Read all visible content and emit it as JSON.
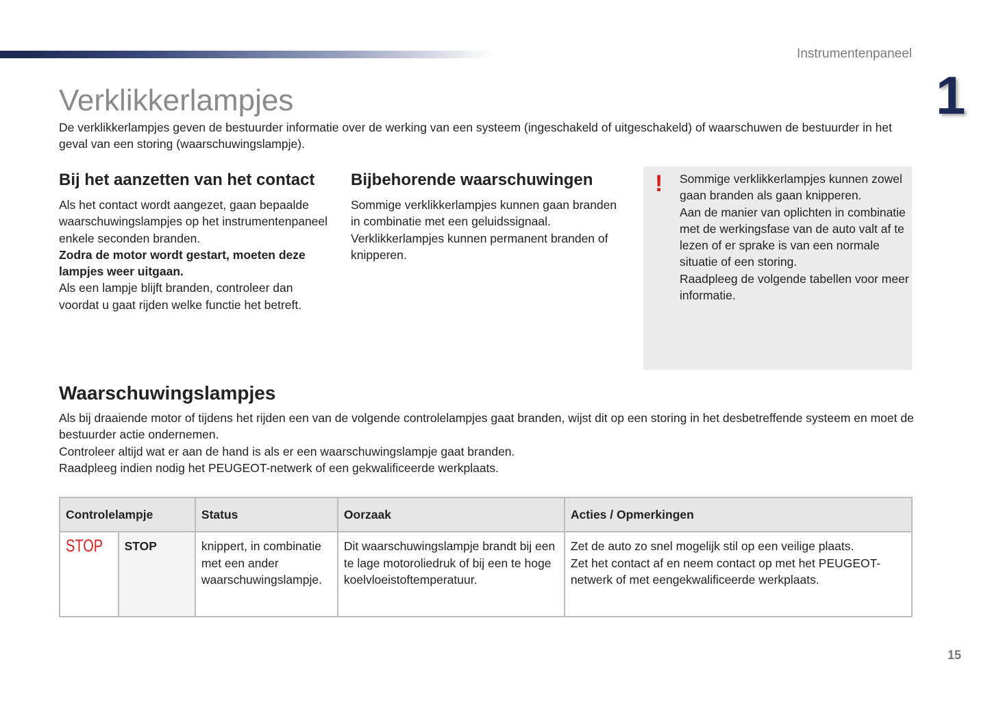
{
  "header": {
    "section": "Instrumentenpaneel",
    "chapter": "1"
  },
  "title": "Verklikkerlampjes",
  "intro": "De verklikkerlampjes geven de bestuurder informatie over de werking van een systeem (ingeschakeld of uitgeschakeld) of waarschuwen de bestuurder in het geval van een storing (waarschuwingslampje).",
  "col1": {
    "heading": "Bij het aanzetten van het contact",
    "text1": "Als het contact wordt aangezet, gaan bepaalde waarschuwingslampjes op het instrumentenpaneel enkele seconden branden.",
    "bold": "Zodra de motor wordt gestart, moeten deze lampjes weer uitgaan.",
    "text2": "Als een lampje blijft branden, controleer dan voordat u gaat rijden welke functie het betreft."
  },
  "col2": {
    "heading": "Bijbehorende waarschuwingen",
    "text": "Sommige verklikkerlampjes kunnen gaan branden in combinatie met een geluidssignaal. Verklikkerlampjes kunnen permanent branden of knipperen."
  },
  "note": {
    "icon": "exclamation-icon",
    "line1": "Sommige verklikkerlampjes kunnen zowel gaan branden als gaan knipperen.",
    "line2": "Aan de manier van oplichten in combinatie met de werkingsfase van de auto valt af te lezen of er sprake is van een normale situatie of een storing.",
    "line3": "Raadpleeg de volgende tabellen voor meer informatie."
  },
  "warnings": {
    "heading": "Waarschuwingslampjes",
    "p1": "Als bij draaiende motor of tijdens het rijden een van de volgende controlelampjes gaat branden, wijst dit op een storing in het desbetreffende systeem en moet de bestuurder actie ondernemen.",
    "p2": "Controleer altijd wat er aan de hand is als er een waarschuwingslampje gaat branden.",
    "p3": "Raadpleeg indien nodig het PEUGEOT-netwerk of een gekwalificeerde werkplaats."
  },
  "table": {
    "headers": [
      "Controlelampje",
      "Status",
      "Oorzaak",
      "Acties / Opmerkingen"
    ],
    "rows": [
      {
        "icon_text": "STOP",
        "name": "STOP",
        "status": "knippert, in combinatie met een ander waarschuwingslampje.",
        "cause": "Dit waarschuwingslampje brandt bij een te lage motoroliedruk of bij een te hoge koelvloeistoftemperatuur.",
        "action1": "Zet de auto zo snel mogelijk stil op een veilige plaats.",
        "action2": "Zet het contact af en neem contact op met het PEUGEOT-netwerk of met eengekwalificeerde werkplaats."
      }
    ]
  },
  "colors": {
    "accent": "#1c2a55",
    "warning": "#d42020"
  },
  "page_number": "15"
}
